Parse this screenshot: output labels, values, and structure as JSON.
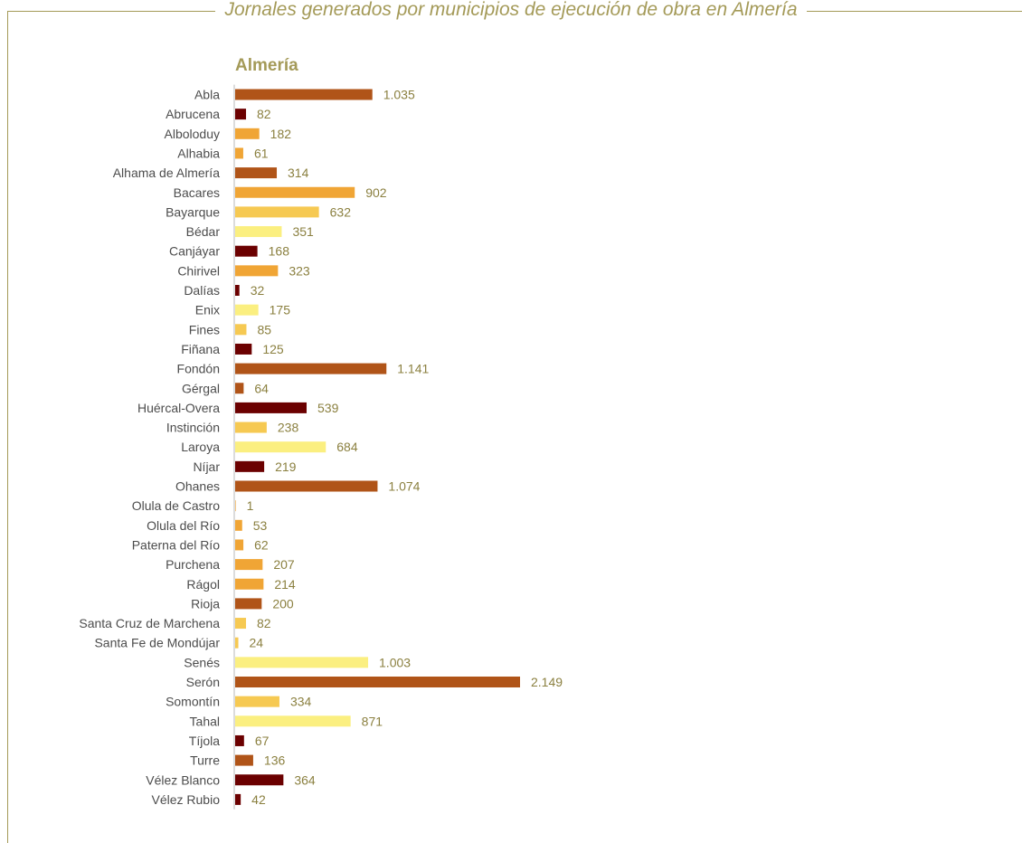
{
  "header": {
    "title": "Jornales generados por municipios de ejecución de obra en Almería"
  },
  "colors": {
    "frame": "#a49a58",
    "title": "#a49a58",
    "category_text": "#4d4d4d",
    "value_text": "#8b8040",
    "axis": "#b8b8b8"
  },
  "chart_data": {
    "type": "bar",
    "orientation": "horizontal",
    "title": "Almería",
    "xlabel": "",
    "ylabel": "",
    "xlim": [
      0,
      2149
    ],
    "grid": false,
    "legend": "none",
    "decimal_separator": "none; thousands separator '.'",
    "categories": [
      "Abla",
      "Abrucena",
      "Alboloduy",
      "Alhabia",
      "Alhama de Almería",
      "Bacares",
      "Bayarque",
      "Bédar",
      "Canjáyar",
      "Chirivel",
      "Dalías",
      "Enix",
      "Fines",
      "Fiñana",
      "Fondón",
      "Gérgal",
      "Huércal-Overa",
      "Instinción",
      "Laroya",
      "Níjar",
      "Ohanes",
      "Olula de Castro",
      "Olula del Río",
      "Paterna del Río",
      "Purchena",
      "Rágol",
      "Rioja",
      "Santa Cruz de Marchena",
      "Santa Fe de Mondújar",
      "Senés",
      "Serón",
      "Somontín",
      "Tahal",
      "Tíjola",
      "Turre",
      "Vélez Blanco",
      "Vélez Rubio"
    ],
    "values": [
      1035,
      82,
      182,
      61,
      314,
      902,
      632,
      351,
      168,
      323,
      32,
      175,
      85,
      125,
      1141,
      64,
      539,
      238,
      684,
      219,
      1074,
      1,
      53,
      62,
      207,
      214,
      200,
      82,
      24,
      1003,
      2149,
      334,
      871,
      67,
      136,
      364,
      42
    ],
    "value_labels": [
      "1.035",
      "82",
      "182",
      "61",
      "314",
      "902",
      "632",
      "351",
      "168",
      "323",
      "32",
      "175",
      "85",
      "125",
      "1.141",
      "64",
      "539",
      "238",
      "684",
      "219",
      "1.074",
      "1",
      "53",
      "62",
      "207",
      "214",
      "200",
      "82",
      "24",
      "1.003",
      "2.149",
      "334",
      "871",
      "67",
      "136",
      "364",
      "42"
    ],
    "bar_colors": [
      "#b05418",
      "#6b0000",
      "#f0a535",
      "#f0a535",
      "#b05418",
      "#f0a535",
      "#f6c952",
      "#fbef80",
      "#6b0000",
      "#f0a535",
      "#6b0000",
      "#fbef80",
      "#f6c952",
      "#6b0000",
      "#b05418",
      "#b05418",
      "#6b0000",
      "#f6c952",
      "#fbef80",
      "#6b0000",
      "#b05418",
      "#f0a535",
      "#f0a535",
      "#f0a535",
      "#f0a535",
      "#f0a535",
      "#b05418",
      "#f6c952",
      "#f6c952",
      "#fbef80",
      "#b05418",
      "#f6c952",
      "#fbef80",
      "#6b0000",
      "#b05418",
      "#6b0000",
      "#6b0000"
    ]
  }
}
